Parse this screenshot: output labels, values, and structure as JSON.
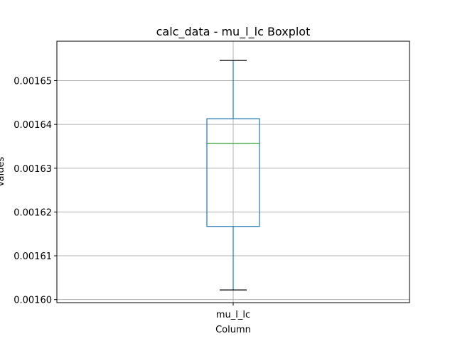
{
  "chart_data": {
    "type": "box",
    "title": "calc_data - mu_l_lc Boxplot",
    "xlabel": "Column",
    "ylabel": "Values",
    "categories": [
      "mu_l_lc"
    ],
    "boxes": [
      {
        "label": "mu_l_lc",
        "whisker_low": 0.0016022,
        "q1": 0.0016167,
        "median": 0.0016357,
        "q3": 0.0016413,
        "whisker_high": 0.0016546
      }
    ],
    "ylim": [
      0.0015993,
      0.001659
    ],
    "yticks": [
      0.0016,
      0.00161,
      0.00162,
      0.00163,
      0.00164,
      0.00165
    ],
    "ytick_labels": [
      "0.00160",
      "0.00161",
      "0.00162",
      "0.00163",
      "0.00164",
      "0.00165"
    ],
    "grid": true,
    "colors": {
      "box": "#1f77b4",
      "median": "#2ca02c",
      "cap": "#000000",
      "grid": "#b0b0b0"
    }
  }
}
